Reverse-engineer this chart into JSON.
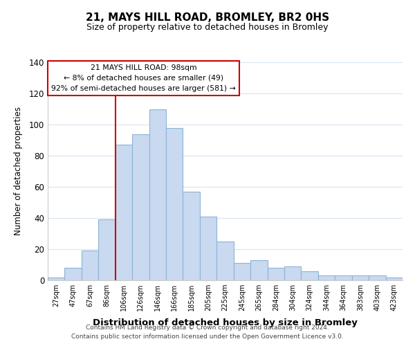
{
  "title": "21, MAYS HILL ROAD, BROMLEY, BR2 0HS",
  "subtitle": "Size of property relative to detached houses in Bromley",
  "xlabel": "Distribution of detached houses by size in Bromley",
  "ylabel": "Number of detached properties",
  "bar_color": "#c8d9f0",
  "bar_edge_color": "#8cb4d8",
  "categories": [
    "27sqm",
    "47sqm",
    "67sqm",
    "86sqm",
    "106sqm",
    "126sqm",
    "146sqm",
    "166sqm",
    "185sqm",
    "205sqm",
    "225sqm",
    "245sqm",
    "265sqm",
    "284sqm",
    "304sqm",
    "324sqm",
    "344sqm",
    "364sqm",
    "383sqm",
    "403sqm",
    "423sqm"
  ],
  "values": [
    2,
    8,
    19,
    39,
    87,
    94,
    110,
    98,
    57,
    41,
    25,
    11,
    13,
    8,
    9,
    6,
    3,
    3,
    3,
    3,
    2
  ],
  "ylim": [
    0,
    140
  ],
  "yticks": [
    0,
    20,
    40,
    60,
    80,
    100,
    120,
    140
  ],
  "vline_x_idx": 4,
  "vline_color": "#cc0000",
  "annotation_lines": [
    "21 MAYS HILL ROAD: 98sqm",
    "← 8% of detached houses are smaller (49)",
    "92% of semi-detached houses are larger (581) →"
  ],
  "footer_line1": "Contains HM Land Registry data © Crown copyright and database right 2024.",
  "footer_line2": "Contains public sector information licensed under the Open Government Licence v3.0.",
  "background_color": "#ffffff",
  "grid_color": "#d8e4f0"
}
